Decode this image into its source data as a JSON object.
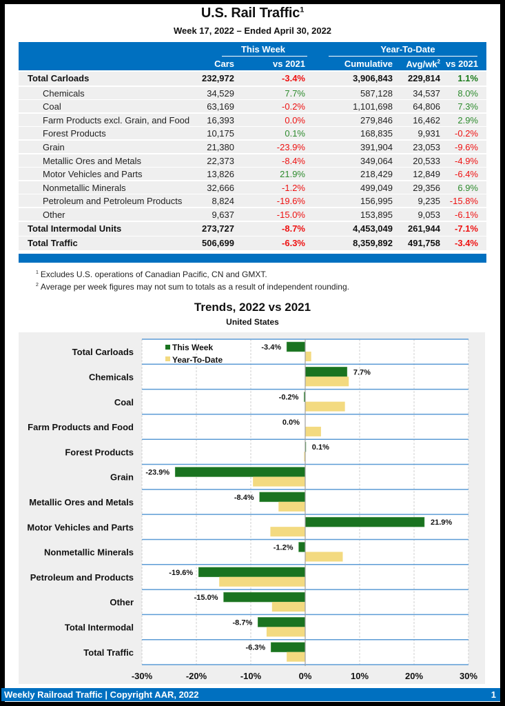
{
  "header": {
    "title": "U.S. Rail Traffic",
    "title_footnote": "1",
    "subtitle": "Week 17, 2022 – Ended April 30, 2022"
  },
  "table": {
    "group_this_week": "This Week",
    "group_ytd": "Year-To-Date",
    "columns": {
      "cars": "Cars",
      "vs2021_week": "vs 2021",
      "cumulative": "Cumulative",
      "avg_wk": "Avg/wk",
      "avg_wk_footnote": "2",
      "vs2021_ytd": "vs 2021"
    },
    "rows": [
      {
        "name": "Total Carloads",
        "level": "total",
        "cars": "232,972",
        "vs_week": "-3.4%",
        "cumulative": "3,906,843",
        "avg_wk": "229,814",
        "vs_ytd": "1.1%"
      },
      {
        "name": "Chemicals",
        "level": "sub",
        "cars": "34,529",
        "vs_week": "7.7%",
        "cumulative": "587,128",
        "avg_wk": "34,537",
        "vs_ytd": "8.0%"
      },
      {
        "name": "Coal",
        "level": "sub",
        "cars": "63,169",
        "vs_week": "-0.2%",
        "cumulative": "1,101,698",
        "avg_wk": "64,806",
        "vs_ytd": "7.3%"
      },
      {
        "name": "Farm Products excl. Grain, and Food",
        "level": "sub",
        "cars": "16,393",
        "vs_week": "0.0%",
        "cumulative": "279,846",
        "avg_wk": "16,462",
        "vs_ytd": "2.9%"
      },
      {
        "name": "Forest Products",
        "level": "sub",
        "cars": "10,175",
        "vs_week": "0.1%",
        "cumulative": "168,835",
        "avg_wk": "9,931",
        "vs_ytd": "-0.2%"
      },
      {
        "name": "Grain",
        "level": "sub",
        "cars": "21,380",
        "vs_week": "-23.9%",
        "cumulative": "391,904",
        "avg_wk": "23,053",
        "vs_ytd": "-9.6%"
      },
      {
        "name": "Metallic Ores and Metals",
        "level": "sub",
        "cars": "22,373",
        "vs_week": "-8.4%",
        "cumulative": "349,064",
        "avg_wk": "20,533",
        "vs_ytd": "-4.9%"
      },
      {
        "name": "Motor Vehicles and Parts",
        "level": "sub",
        "cars": "13,826",
        "vs_week": "21.9%",
        "cumulative": "218,429",
        "avg_wk": "12,849",
        "vs_ytd": "-6.4%"
      },
      {
        "name": "Nonmetallic Minerals",
        "level": "sub",
        "cars": "32,666",
        "vs_week": "-1.2%",
        "cumulative": "499,049",
        "avg_wk": "29,356",
        "vs_ytd": "6.9%"
      },
      {
        "name": "Petroleum and Petroleum Products",
        "level": "sub",
        "cars": "8,824",
        "vs_week": "-19.6%",
        "cumulative": "156,995",
        "avg_wk": "9,235",
        "vs_ytd": "-15.8%"
      },
      {
        "name": "Other",
        "level": "sub",
        "cars": "9,637",
        "vs_week": "-15.0%",
        "cumulative": "153,895",
        "avg_wk": "9,053",
        "vs_ytd": "-6.1%"
      },
      {
        "name": "Total Intermodal Units",
        "level": "total",
        "cars": "273,727",
        "vs_week": "-8.7%",
        "cumulative": "4,453,049",
        "avg_wk": "261,944",
        "vs_ytd": "-7.1%"
      },
      {
        "name": "Total Traffic",
        "level": "total",
        "cars": "506,699",
        "vs_week": "-6.3%",
        "cumulative": "8,359,892",
        "avg_wk": "491,758",
        "vs_ytd": "-3.4%"
      }
    ]
  },
  "footnotes": [
    {
      "mark": "1",
      "text": "Excludes U.S. operations of Canadian Pacific, CN and GMXT."
    },
    {
      "mark": "2",
      "text": "Average per week figures may not sum to totals as a result of independent rounding."
    }
  ],
  "colors": {
    "header_blue": "#0070c0",
    "positive_green": "#2e8b2e",
    "negative_red": "#ee1111",
    "bar_this_week": "#1a7320",
    "bar_ytd": "#f3da80",
    "band_line": "#5b9bd5"
  },
  "chart_data": {
    "type": "bar",
    "orientation": "horizontal",
    "title": "Trends, 2022 vs 2021",
    "subtitle": "United States",
    "xlabel": "",
    "ylabel": "",
    "xlim": [
      -30,
      30
    ],
    "x_ticks": [
      -30,
      -20,
      -10,
      0,
      10,
      20,
      30
    ],
    "x_tick_labels": [
      "-30%",
      "-20%",
      "-10%",
      "0%",
      "10%",
      "20%",
      "30%"
    ],
    "grid": true,
    "legend_position": "top-left",
    "categories": [
      "Total Carloads",
      "Chemicals",
      "Coal",
      "Farm Products and Food",
      "Forest Products",
      "Grain",
      "Metallic Ores and Metals",
      "Motor Vehicles and Parts",
      "Nonmetallic Minerals",
      "Petroleum and Products",
      "Other",
      "Total Intermodal",
      "Total Traffic"
    ],
    "series": [
      {
        "name": "This Week",
        "values": [
          -3.4,
          7.7,
          -0.2,
          0.0,
          0.1,
          -23.9,
          -8.4,
          21.9,
          -1.2,
          -19.6,
          -15.0,
          -8.7,
          -6.3
        ],
        "labels": [
          "-3.4%",
          "7.7%",
          "-0.2%",
          "0.0%",
          "0.1%",
          "-23.9%",
          "-8.4%",
          "21.9%",
          "-1.2%",
          "-19.6%",
          "-15.0%",
          "-8.7%",
          "-6.3%"
        ]
      },
      {
        "name": "Year-To-Date",
        "values": [
          1.1,
          8.0,
          7.3,
          2.9,
          -0.2,
          -9.6,
          -4.9,
          -6.4,
          6.9,
          -15.8,
          -6.1,
          -7.1,
          -3.4
        ]
      }
    ]
  },
  "footer": {
    "text": "Weekly Railroad Traffic | Copyright AAR, 2022",
    "page": "1"
  }
}
